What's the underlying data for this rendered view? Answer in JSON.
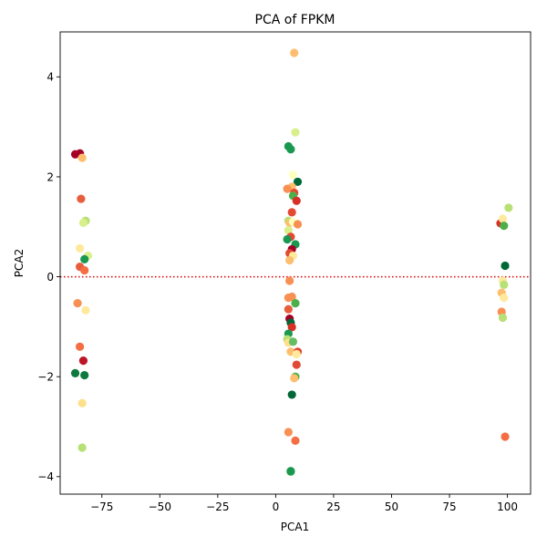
{
  "chart_data": {
    "type": "scatter",
    "title": "PCA of FPKM",
    "xlabel": "PCA1",
    "ylabel": "PCA2",
    "xlim": [
      -93,
      110
    ],
    "ylim": [
      -4.35,
      4.9
    ],
    "xticks": [
      -75,
      -50,
      -25,
      0,
      25,
      50,
      75,
      100
    ],
    "xtick_labels": [
      "−75",
      "−50",
      "−25",
      "0",
      "25",
      "50",
      "75",
      "100"
    ],
    "yticks": [
      -4,
      -2,
      0,
      2,
      4
    ],
    "ytick_labels": [
      "−4",
      "−2",
      "0",
      "2",
      "4"
    ],
    "grid": false,
    "legend": null,
    "reference_line": {
      "y": 0,
      "color": "#dd0000",
      "style": "dotted"
    },
    "colormap": "RdYlGn",
    "points": [
      {
        "x": -86.5,
        "y": 2.45,
        "color": "#a50026"
      },
      {
        "x": -84.5,
        "y": 2.47,
        "color": "#a50026"
      },
      {
        "x": -83.5,
        "y": 2.38,
        "color": "#fdbf6f"
      },
      {
        "x": -84.0,
        "y": 1.56,
        "color": "#e75e3d"
      },
      {
        "x": -82.0,
        "y": 1.12,
        "color": "#b7e075"
      },
      {
        "x": -83.0,
        "y": 1.08,
        "color": "#d9ef8b"
      },
      {
        "x": -84.5,
        "y": 0.57,
        "color": "#fee99d"
      },
      {
        "x": -81.0,
        "y": 0.42,
        "color": "#d9ef8b"
      },
      {
        "x": -82.5,
        "y": 0.35,
        "color": "#1a9850"
      },
      {
        "x": -84.5,
        "y": 0.2,
        "color": "#e75e3d"
      },
      {
        "x": -82.5,
        "y": 0.13,
        "color": "#f46d43"
      },
      {
        "x": -85.5,
        "y": -0.53,
        "color": "#f89053"
      },
      {
        "x": -82.0,
        "y": -0.67,
        "color": "#fee99d"
      },
      {
        "x": -84.5,
        "y": -1.4,
        "color": "#f46d43"
      },
      {
        "x": -83.0,
        "y": -1.68,
        "color": "#bb1526"
      },
      {
        "x": -86.5,
        "y": -1.93,
        "color": "#0e7a3e"
      },
      {
        "x": -82.5,
        "y": -1.97,
        "color": "#0e7a3e"
      },
      {
        "x": -83.5,
        "y": -2.53,
        "color": "#fee08b"
      },
      {
        "x": -83.5,
        "y": -3.42,
        "color": "#b7e075"
      },
      {
        "x": 8.0,
        "y": 4.48,
        "color": "#fdbf6f"
      },
      {
        "x": 8.5,
        "y": 2.89,
        "color": "#d9ef8b"
      },
      {
        "x": 5.5,
        "y": 2.61,
        "color": "#1a9850"
      },
      {
        "x": 6.5,
        "y": 2.55,
        "color": "#1a9850"
      },
      {
        "x": 7.5,
        "y": 2.04,
        "color": "#ffffbf"
      },
      {
        "x": 9.5,
        "y": 1.9,
        "color": "#006837"
      },
      {
        "x": 7.0,
        "y": 1.8,
        "color": "#fdbf6f"
      },
      {
        "x": 5.0,
        "y": 1.76,
        "color": "#f89053"
      },
      {
        "x": 8.0,
        "y": 1.68,
        "color": "#e34a33"
      },
      {
        "x": 7.5,
        "y": 1.62,
        "color": "#4daf4a"
      },
      {
        "x": 9.0,
        "y": 1.52,
        "color": "#d73027"
      },
      {
        "x": 7.0,
        "y": 1.29,
        "color": "#e34a33"
      },
      {
        "x": 5.5,
        "y": 1.12,
        "color": "#b7e075"
      },
      {
        "x": 6.0,
        "y": 1.08,
        "color": "#fdbf6f"
      },
      {
        "x": 7.5,
        "y": 1.1,
        "color": "#ffffbf"
      },
      {
        "x": 9.5,
        "y": 1.05,
        "color": "#f89053"
      },
      {
        "x": 5.5,
        "y": 0.93,
        "color": "#d9ef8b"
      },
      {
        "x": 6.5,
        "y": 0.8,
        "color": "#e34a33"
      },
      {
        "x": 5.0,
        "y": 0.75,
        "color": "#1a9850"
      },
      {
        "x": 8.5,
        "y": 0.65,
        "color": "#1a9850"
      },
      {
        "x": 7.0,
        "y": 0.55,
        "color": "#a50026"
      },
      {
        "x": 6.0,
        "y": 0.47,
        "color": "#e34a33"
      },
      {
        "x": 7.5,
        "y": 0.42,
        "color": "#fee99d"
      },
      {
        "x": 6.0,
        "y": 0.33,
        "color": "#fdbf6f"
      },
      {
        "x": 6.0,
        "y": -0.08,
        "color": "#f89053"
      },
      {
        "x": 5.5,
        "y": -0.42,
        "color": "#f89053"
      },
      {
        "x": 7.0,
        "y": -0.4,
        "color": "#f89053"
      },
      {
        "x": 8.5,
        "y": -0.53,
        "color": "#4daf4a"
      },
      {
        "x": 5.5,
        "y": -0.65,
        "color": "#e75e3d"
      },
      {
        "x": 6.0,
        "y": -0.84,
        "color": "#a50026"
      },
      {
        "x": 6.5,
        "y": -0.92,
        "color": "#006837"
      },
      {
        "x": 7.0,
        "y": -1.01,
        "color": "#d73027"
      },
      {
        "x": 5.5,
        "y": -1.14,
        "color": "#1a9850"
      },
      {
        "x": 5.0,
        "y": -1.25,
        "color": "#b7e075"
      },
      {
        "x": 5.5,
        "y": -1.32,
        "color": "#fee08b"
      },
      {
        "x": 7.5,
        "y": -1.3,
        "color": "#66bd63"
      },
      {
        "x": 6.5,
        "y": -1.5,
        "color": "#fdbf6f"
      },
      {
        "x": 9.5,
        "y": -1.5,
        "color": "#e34a33"
      },
      {
        "x": 9.0,
        "y": -1.55,
        "color": "#fee99d"
      },
      {
        "x": 9.0,
        "y": -1.76,
        "color": "#e34a33"
      },
      {
        "x": 8.5,
        "y": -2.0,
        "color": "#4daf4a"
      },
      {
        "x": 8.0,
        "y": -2.03,
        "color": "#fdbf6f"
      },
      {
        "x": 7.0,
        "y": -2.36,
        "color": "#006837"
      },
      {
        "x": 5.5,
        "y": -3.11,
        "color": "#f89053"
      },
      {
        "x": 8.5,
        "y": -3.28,
        "color": "#f46d43"
      },
      {
        "x": 6.5,
        "y": -3.9,
        "color": "#4daf4a"
      },
      {
        "x": 6.5,
        "y": -3.89,
        "color": "#1a9850"
      },
      {
        "x": 100.5,
        "y": 1.38,
        "color": "#b7e075"
      },
      {
        "x": 97.0,
        "y": 1.07,
        "color": "#d73027"
      },
      {
        "x": 98.0,
        "y": 1.16,
        "color": "#fee99d"
      },
      {
        "x": 98.5,
        "y": 1.02,
        "color": "#4daf4a"
      },
      {
        "x": 99.0,
        "y": 0.22,
        "color": "#006837"
      },
      {
        "x": 98.0,
        "y": -0.08,
        "color": "#fee99d"
      },
      {
        "x": 98.5,
        "y": -0.16,
        "color": "#b7e075"
      },
      {
        "x": 97.5,
        "y": -0.32,
        "color": "#fdbf6f"
      },
      {
        "x": 98.5,
        "y": -0.42,
        "color": "#fee99d"
      },
      {
        "x": 97.5,
        "y": -0.7,
        "color": "#f89053"
      },
      {
        "x": 98.0,
        "y": -0.82,
        "color": "#b7e075"
      },
      {
        "x": 99.0,
        "y": -3.2,
        "color": "#f46d43"
      }
    ]
  }
}
